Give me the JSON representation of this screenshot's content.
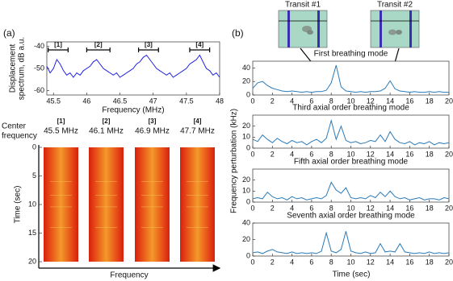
{
  "panel_labels": [
    "(a)",
    "(b)"
  ],
  "insets": [
    "Transit #1",
    "Transit #2"
  ],
  "figure_b": {
    "ylabel": "Frequency perturbation (kHz)",
    "xlabel": "Time (sec)"
  },
  "chart_data": [
    {
      "type": "line",
      "ylabel": [
        "Displacement",
        "spectrum, dB a.u."
      ],
      "xlabel": "Frequency (MHz)",
      "xlim": [
        45.4,
        48
      ],
      "xticks": [
        45.5,
        46,
        46.5,
        47,
        47.5,
        48
      ],
      "ylim": [
        -62,
        -38
      ],
      "yticks": [
        -60,
        -50,
        -40
      ],
      "color": "#1f1fe6",
      "x": [
        45.4,
        45.45,
        45.5,
        45.55,
        45.6,
        45.65,
        45.7,
        45.75,
        45.8,
        45.85,
        45.9,
        45.95,
        46,
        46.05,
        46.1,
        46.15,
        46.2,
        46.25,
        46.3,
        46.35,
        46.4,
        46.45,
        46.5,
        46.55,
        46.6,
        46.65,
        46.7,
        46.75,
        46.8,
        46.85,
        46.9,
        46.95,
        47,
        47.05,
        47.1,
        47.15,
        47.2,
        47.25,
        47.3,
        47.35,
        47.4,
        47.45,
        47.5,
        47.55,
        47.6,
        47.65,
        47.7,
        47.75,
        47.8,
        47.85,
        47.9,
        47.95,
        48
      ],
      "values": [
        -49,
        -52,
        -50,
        -46,
        -48,
        -51,
        -53,
        -52,
        -54,
        -52,
        -53,
        -51,
        -50,
        -49,
        -47,
        -46,
        -48,
        -50,
        -51,
        -52,
        -53,
        -52,
        -54,
        -53,
        -52,
        -51,
        -50,
        -48,
        -47,
        -45,
        -44,
        -46,
        -48,
        -50,
        -51,
        -52,
        -53,
        -52,
        -54,
        -53,
        -52,
        -51,
        -50,
        -48,
        -47,
        -46,
        -44,
        -47,
        -50,
        -51,
        -53,
        -52,
        -54
      ],
      "annotations": [
        {
          "text": "[1]",
          "span": [
            45.42,
            45.72
          ]
        },
        {
          "text": "[2]",
          "span": [
            46.0,
            46.35
          ]
        },
        {
          "text": "[3]",
          "span": [
            46.78,
            47.08
          ]
        },
        {
          "text": "[4]",
          "span": [
            47.55,
            47.85
          ]
        }
      ]
    },
    {
      "type": "image",
      "side_label": [
        "Center",
        "frequency"
      ],
      "categories": [
        "[1]",
        "[2]",
        "[3]",
        "[4]"
      ],
      "center_frequencies": [
        "45.5 MHz",
        "46.1 MHz",
        "46.9 MHz",
        "47.7 MHz"
      ],
      "ylabel": "Time (sec)",
      "xlabel": "Frequency",
      "ylim": [
        0,
        20
      ],
      "yticks": [
        0,
        5,
        10,
        15,
        20
      ]
    },
    {
      "type": "line",
      "title": "First breathing mode",
      "color": "#2a7ab8",
      "xlim": [
        0,
        20
      ],
      "xticks": [
        0,
        2,
        4,
        6,
        8,
        10,
        12,
        14,
        16,
        18,
        20
      ],
      "ylim": [
        0,
        50
      ],
      "yticks": [
        0,
        20,
        40
      ],
      "x": [
        0,
        0.5,
        1,
        1.5,
        2,
        2.5,
        3,
        3.5,
        4,
        4.5,
        5,
        5.5,
        6,
        6.5,
        7,
        7.5,
        8,
        8.5,
        9,
        9.5,
        10,
        10.5,
        11,
        11.5,
        12,
        12.5,
        13,
        13.5,
        14,
        14.5,
        15,
        15.5,
        16,
        16.5,
        17,
        17.5,
        18,
        18.5,
        19,
        19.5,
        20
      ],
      "values": [
        10,
        18,
        20,
        14,
        10,
        8,
        6,
        5,
        6,
        5,
        4,
        5,
        4,
        5,
        5,
        7,
        18,
        44,
        12,
        6,
        5,
        4,
        5,
        4,
        5,
        5,
        6,
        10,
        21,
        9,
        6,
        5,
        4,
        5,
        4,
        4,
        5,
        4,
        5,
        4,
        4
      ]
    },
    {
      "type": "line",
      "title": "Third axial order breathing mode",
      "color": "#2a7ab8",
      "xlim": [
        0,
        20
      ],
      "xticks": [
        0,
        2,
        4,
        6,
        8,
        10,
        12,
        14,
        16,
        18,
        20
      ],
      "ylim": [
        0,
        30
      ],
      "yticks": [
        0,
        10,
        20
      ],
      "x": [
        0,
        0.5,
        1,
        1.5,
        2,
        2.5,
        3,
        3.5,
        4,
        4.5,
        5,
        5.5,
        6,
        6.5,
        7,
        7.5,
        8,
        8.5,
        9,
        9.5,
        10,
        10.5,
        11,
        11.5,
        12,
        12.5,
        13,
        13.5,
        14,
        14.5,
        15,
        15.5,
        16,
        16.5,
        17,
        17.5,
        18,
        18.5,
        19,
        19.5,
        20
      ],
      "values": [
        8,
        6,
        12,
        8,
        5,
        9,
        6,
        4,
        7,
        5,
        6,
        3,
        6,
        8,
        5,
        9,
        25,
        8,
        20,
        7,
        5,
        6,
        4,
        5,
        7,
        6,
        12,
        6,
        15,
        8,
        5,
        4,
        6,
        3,
        5,
        4,
        6,
        3,
        5,
        4,
        5
      ]
    },
    {
      "type": "line",
      "title": "Fifth axial order breathing mode",
      "color": "#2a7ab8",
      "xlim": [
        0,
        20
      ],
      "xticks": [
        0,
        2,
        4,
        6,
        8,
        10,
        12,
        14,
        16,
        18,
        20
      ],
      "ylim": [
        0,
        30
      ],
      "yticks": [
        0,
        10,
        20
      ],
      "x": [
        0,
        0.5,
        1,
        1.5,
        2,
        2.5,
        3,
        3.5,
        4,
        4.5,
        5,
        5.5,
        6,
        6.5,
        7,
        7.5,
        8,
        8.5,
        9,
        9.5,
        10,
        10.5,
        11,
        11.5,
        12,
        12.5,
        13,
        13.5,
        14,
        14.5,
        15,
        15.5,
        16,
        16.5,
        17,
        17.5,
        18,
        18.5,
        19,
        19.5,
        20
      ],
      "values": [
        3,
        4,
        3,
        9,
        5,
        3,
        4,
        2,
        5,
        3,
        4,
        2,
        3,
        4,
        3,
        6,
        18,
        11,
        8,
        13,
        4,
        3,
        4,
        3,
        6,
        4,
        9,
        5,
        10,
        5,
        3,
        4,
        2,
        3,
        4,
        2,
        3,
        3,
        2,
        4,
        3
      ]
    },
    {
      "type": "line",
      "title": "Seventh axial order breathing mode",
      "color": "#2a7ab8",
      "xlim": [
        0,
        20
      ],
      "xticks": [
        0,
        2,
        4,
        6,
        8,
        10,
        12,
        14,
        16,
        18,
        20
      ],
      "ylim": [
        0,
        40
      ],
      "yticks": [
        0,
        20,
        40
      ],
      "x": [
        0,
        0.5,
        1,
        1.5,
        2,
        2.5,
        3,
        3.5,
        4,
        4.5,
        5,
        5.5,
        6,
        6.5,
        7,
        7.5,
        8,
        8.5,
        9,
        9.5,
        10,
        10.5,
        11,
        11.5,
        12,
        12.5,
        13,
        13.5,
        14,
        14.5,
        15,
        15.5,
        16,
        16.5,
        17,
        17.5,
        18,
        18.5,
        19,
        19.5,
        20
      ],
      "values": [
        4,
        5,
        3,
        6,
        8,
        5,
        4,
        3,
        5,
        3,
        4,
        3,
        4,
        3,
        6,
        28,
        6,
        4,
        8,
        30,
        6,
        4,
        3,
        5,
        3,
        4,
        15,
        5,
        6,
        5,
        15,
        5,
        4,
        3,
        4,
        3,
        5,
        3,
        4,
        3,
        4
      ]
    }
  ]
}
